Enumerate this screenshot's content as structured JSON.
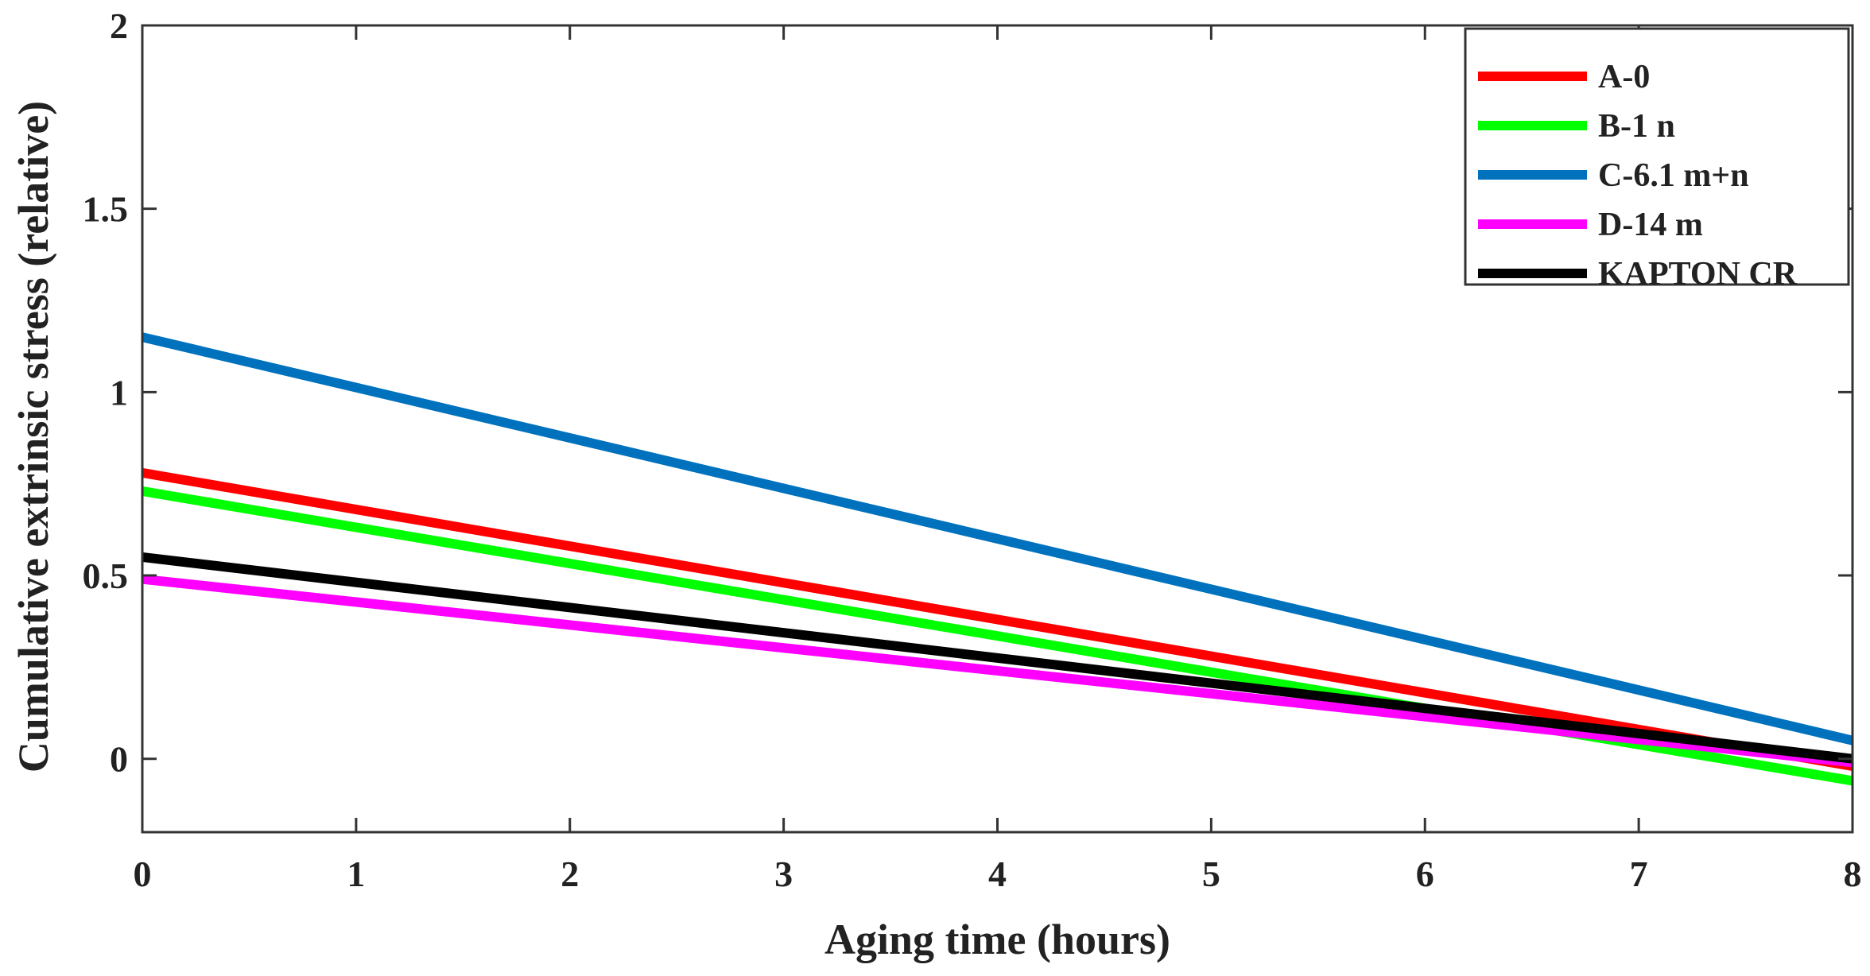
{
  "chart_data": {
    "type": "line",
    "title": "",
    "xlabel": "Aging time (hours)",
    "ylabel": "Cumulative extrinsic stress (relative)",
    "xlim": [
      0,
      8
    ],
    "ylim": [
      -0.2,
      2
    ],
    "xticks": [
      0,
      1,
      2,
      3,
      4,
      5,
      6,
      7,
      8
    ],
    "xtick_labels": [
      "0",
      "1",
      "2",
      "3",
      "4",
      "5",
      "6",
      "7",
      "8"
    ],
    "yticks": [
      0,
      0.5,
      1,
      1.5,
      2
    ],
    "ytick_labels": [
      "0",
      "0.5",
      "1",
      "1.5",
      "2"
    ],
    "grid": false,
    "legend_position": "top-right",
    "series": [
      {
        "name": "A-0",
        "color": "#ff0000",
        "x": [
          0,
          8
        ],
        "values": [
          0.78,
          -0.02
        ]
      },
      {
        "name": "B-1 n",
        "color": "#00ff00",
        "x": [
          0,
          8
        ],
        "values": [
          0.73,
          -0.06
        ]
      },
      {
        "name": "C-6.1 m+n",
        "color": "#0072bd",
        "x": [
          0,
          8
        ],
        "values": [
          1.15,
          0.05
        ]
      },
      {
        "name": "D-14 m",
        "color": "#ff00ff",
        "x": [
          0,
          8
        ],
        "values": [
          0.49,
          -0.01
        ]
      },
      {
        "name": "KAPTON CR",
        "color": "#000000",
        "x": [
          0,
          8
        ],
        "values": [
          0.55,
          0.0
        ]
      }
    ]
  }
}
